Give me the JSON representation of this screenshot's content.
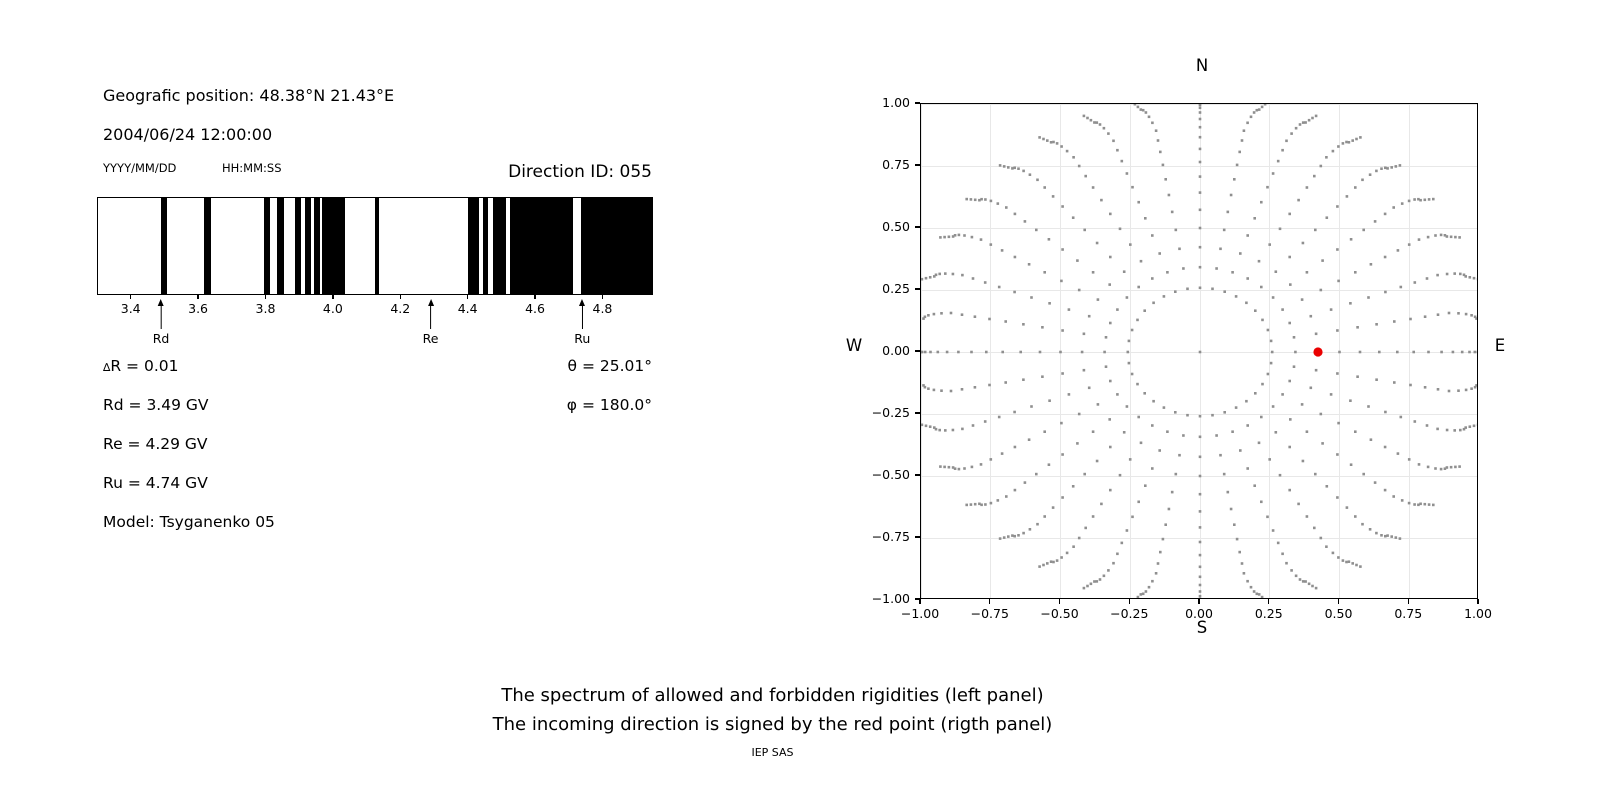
{
  "header": {
    "position_line": "Geografic position: 48.38°N 21.43°E",
    "datetime_line": "2004/06/24 12:00:00",
    "date_format_label": "YYYY/MM/DD",
    "time_format_label": "HH:MM:SS",
    "direction_id_line": "Direction ID: 055"
  },
  "captions": {
    "line1": "The spectrum of allowed and forbidden rigidities (left panel)",
    "line2": "The incoming direction is signed by the red point (rigth panel)",
    "credit": "IEP SAS"
  },
  "colors": {
    "allowed_band": "#000000",
    "grey_dot": "#8f8f8f",
    "red_point": "#ea0000",
    "grid": "#e8e8e8",
    "text": "#000000"
  },
  "chart_data": [
    {
      "type": "bar",
      "panel": "left",
      "description": "Barcode-style spectrum: black bands = allowed rigidities, white = forbidden",
      "xlim": [
        3.3,
        4.95
      ],
      "x_ticks": [
        3.4,
        3.6,
        3.8,
        4.0,
        4.2,
        4.4,
        4.6,
        4.8
      ],
      "x_tick_labels": [
        "3.4",
        "3.6",
        "3.8",
        "4.0",
        "4.2",
        "4.4",
        "4.6",
        "4.8"
      ],
      "allowed_intervals_gv": [
        [
          3.487,
          3.506
        ],
        [
          3.617,
          3.636
        ],
        [
          3.795,
          3.813
        ],
        [
          3.834,
          3.855
        ],
        [
          3.888,
          3.906
        ],
        [
          3.917,
          3.935
        ],
        [
          3.944,
          3.962
        ],
        [
          3.968,
          4.036
        ],
        [
          4.125,
          4.136
        ],
        [
          4.401,
          4.434
        ],
        [
          4.446,
          4.461
        ],
        [
          4.475,
          4.514
        ],
        [
          4.528,
          4.715
        ],
        [
          4.739,
          4.95
        ]
      ],
      "markers": [
        {
          "label": "Rd",
          "value_gv": 3.49
        },
        {
          "label": "Re",
          "value_gv": 4.29
        },
        {
          "label": "Ru",
          "value_gv": 4.74
        }
      ],
      "annotations_left": [
        "∆R = 0.01",
        "Rd = 3.49 GV",
        "Re = 4.29 GV",
        "Ru = 4.74 GV",
        "Model: Tsyganenko 05"
      ],
      "annotations_right": [
        "θ = 25.01°",
        "φ = 180.0°"
      ]
    },
    {
      "type": "scatter",
      "panel": "right",
      "description": "Direction sky-map: grey dot grid of azimuth spokes and zenith rings; red point = incoming direction",
      "xlim": [
        -1,
        1
      ],
      "ylim": [
        -1,
        1
      ],
      "x_ticks": [
        -1,
        -0.75,
        -0.5,
        -0.25,
        0,
        0.25,
        0.5,
        0.75,
        1
      ],
      "x_tick_labels": [
        "−1.00",
        "−0.75",
        "−0.50",
        "−0.25",
        "0.00",
        "0.25",
        "0.50",
        "0.75",
        "1.00"
      ],
      "y_ticks": [
        1,
        0.75,
        0.5,
        0.25,
        0,
        -0.25,
        -0.5,
        -0.75,
        -1
      ],
      "y_tick_labels": [
        "1.00",
        "0.75",
        "0.50",
        "0.25",
        "0.00",
        "−0.25",
        "−0.50",
        "−0.75",
        "−1.00"
      ],
      "compass": {
        "north": "N",
        "south": "S",
        "east": "E",
        "west": "W"
      },
      "grid": "on",
      "legend": "none",
      "grey_direction_grid": {
        "azimuth_deg_start": 0,
        "azimuth_deg_step": 10,
        "azimuth_count": 36,
        "zenith_deg_start": 15,
        "zenith_deg_step": 5,
        "zenith_count": 16,
        "radius_rule": "sin(zenith)",
        "tip_extra_radii": [
          1.013,
          1.026,
          1.039
        ],
        "tip_drift_deg_per_step": 0.45,
        "includes_center_point": true
      },
      "red_point": {
        "x": 0.423,
        "y": 0.0
      }
    }
  ]
}
